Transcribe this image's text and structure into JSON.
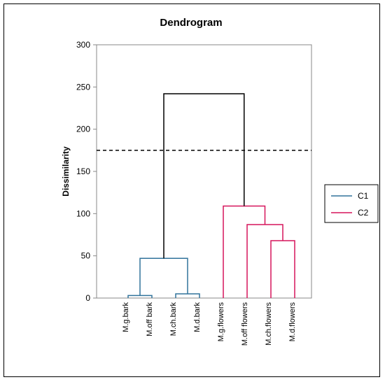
{
  "chart_data": {
    "type": "dendrogram",
    "title": "Dendrogram",
    "ylabel": "Dissimilarity",
    "ylim": [
      0,
      300
    ],
    "yticks": [
      0,
      50,
      100,
      150,
      200,
      250,
      300
    ],
    "leaves": [
      "M.g.bark",
      "M.off bark",
      "M.ch.bark",
      "M.d.bark",
      "M.g.flowers",
      "M.off flowers",
      "M.ch.flowers",
      "M.d.flowers"
    ],
    "merges": [
      {
        "left": 0,
        "right": 1,
        "height": 3,
        "cluster": "C1"
      },
      {
        "left": 2,
        "right": 3,
        "height": 5,
        "cluster": "C1"
      },
      {
        "left": "m0",
        "right": "m1",
        "height": 47,
        "cluster": "C1"
      },
      {
        "left": 6,
        "right": 7,
        "height": 68,
        "cluster": "C2"
      },
      {
        "left": 5,
        "right": "m3",
        "height": 87,
        "cluster": "C2"
      },
      {
        "left": 4,
        "right": "m4",
        "height": 109,
        "cluster": "C2"
      },
      {
        "left": "m2",
        "right": "m5",
        "height": 242,
        "cluster": "root"
      }
    ],
    "cut_line": 175,
    "legend": {
      "position": "right",
      "entries": [
        {
          "name": "C1",
          "color": "#31739b"
        },
        {
          "name": "C2",
          "color": "#d6155b"
        }
      ]
    },
    "colors": {
      "C1": "#31739b",
      "C2": "#d6155b",
      "root": "#000000"
    }
  }
}
